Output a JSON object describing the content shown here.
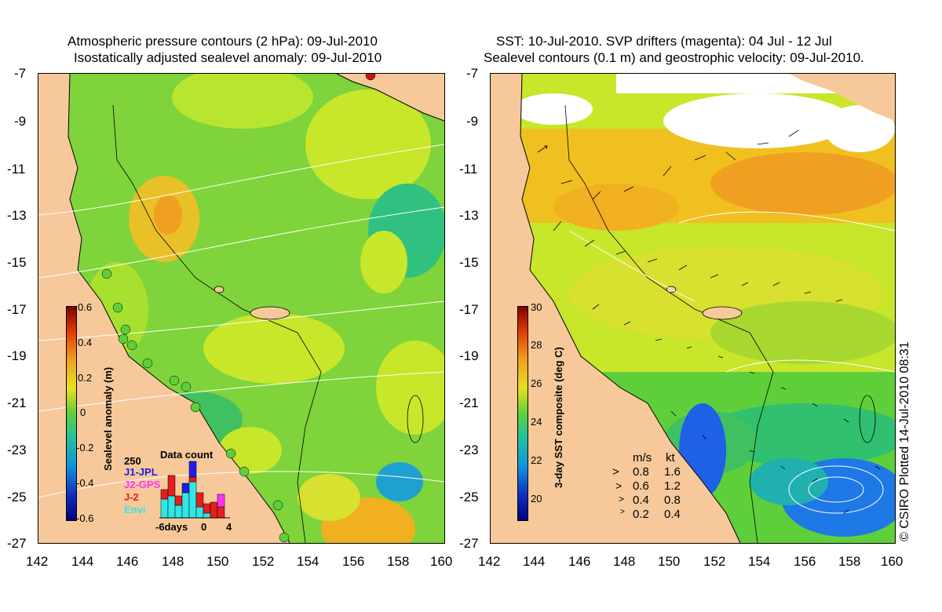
{
  "left_panel": {
    "title_line1": "Atmospheric pressure contours (2 hPa): 09-Jul-2010",
    "title_line2": "Isostatically adjusted sealevel anomaly: 09-Jul-2010",
    "y_ticks": [
      "-7",
      "-9",
      "-11",
      "-13",
      "-15",
      "-17",
      "-19",
      "-21",
      "-23",
      "-25",
      "-27"
    ],
    "x_ticks": [
      "142",
      "144",
      "146",
      "148",
      "150",
      "152",
      "154",
      "156",
      "158",
      "160"
    ],
    "colorbar": {
      "label": "Sealevel anomaly (m)",
      "ticks": [
        "0.6",
        "0.4",
        "0.2",
        "0",
        "-0.2",
        "-0.4",
        "-0.6"
      ]
    },
    "data_count": {
      "title": "Data count",
      "ymax_label": "250",
      "legend": [
        {
          "name": "J1-JPL",
          "color": "#1e1ee6"
        },
        {
          "name": "J2-GPS",
          "color": "#ff33ff"
        },
        {
          "name": "J-2",
          "color": "#e61e1e"
        },
        {
          "name": "Envi",
          "color": "#33e6e6"
        }
      ],
      "x_labels": [
        "-6days",
        "0",
        "4"
      ]
    }
  },
  "right_panel": {
    "title_line1": "SST: 10-Jul-2010. SVP drifters (magenta): 04 Jul - 12 Jul",
    "title_line2": "Sealevel contours (0.1 m) and geostrophic velocity: 09-Jul-2010.",
    "y_ticks": [
      "-7",
      "-9",
      "-11",
      "-13",
      "-15",
      "-17",
      "-19",
      "-21",
      "-23",
      "-25",
      "-27"
    ],
    "x_ticks": [
      "142",
      "144",
      "146",
      "148",
      "150",
      "152",
      "154",
      "156",
      "158",
      "160"
    ],
    "colorbar": {
      "label": "3-day SST composite (deg C)",
      "ticks": [
        "30",
        "28",
        "26",
        "24",
        "22",
        "20"
      ]
    },
    "velocity_legend": {
      "header_ms": "m/s",
      "header_kt": "kt",
      "rows": [
        {
          "ms": "0.8",
          "kt": "1.6"
        },
        {
          "ms": "0.6",
          "kt": "1.2"
        },
        {
          "ms": "0.4",
          "kt": "0.8"
        },
        {
          "ms": "0.2",
          "kt": "0.4"
        }
      ]
    },
    "credit": "© CSIRO Plotted 14-Jul-2010 08:31"
  },
  "colors": {
    "land": "#f7c99a",
    "ocean_green": "#5ecf3a",
    "ocean_yellow": "#c8e62a",
    "ocean_orange": "#f0b020",
    "sst_blue": "#1e78e6"
  }
}
